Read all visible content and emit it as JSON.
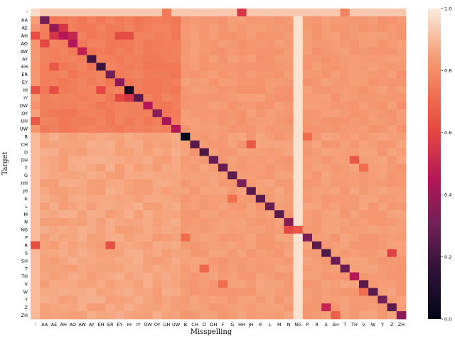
{
  "chart_data": {
    "type": "heatmap",
    "xlabel": "Misspelling",
    "ylabel": "Target",
    "x_categories": [
      "'",
      "AA",
      "AE",
      "AH",
      "AO",
      "AW",
      "AY",
      "EH",
      "ER",
      "EY",
      "IH",
      "IY",
      "OW",
      "OY",
      "UH",
      "UW",
      "B",
      "CH",
      "D",
      "DH",
      "F",
      "G",
      "HH",
      "JH",
      "K",
      "L",
      "M",
      "N",
      "NG",
      "P",
      "R",
      "S",
      "SH",
      "T",
      "TH",
      "V",
      "W",
      "Y",
      "Z",
      "ZH"
    ],
    "y_categories": [
      "'",
      "AA",
      "AE",
      "AH",
      "AO",
      "AW",
      "AY",
      "EH",
      "ER",
      "EY",
      "IH",
      "IY",
      "OW",
      "OY",
      "UH",
      "UW",
      "B",
      "CH",
      "D",
      "DH",
      "F",
      "G",
      "HH",
      "JH",
      "K",
      "L",
      "M",
      "N",
      "NG",
      "P",
      "R",
      "S",
      "SH",
      "T",
      "TH",
      "V",
      "W",
      "Y",
      "Z",
      "ZH"
    ],
    "colorbar": {
      "min": 0.0,
      "max": 1.0,
      "ticks": [
        "0.0",
        "0.2",
        "0.4",
        "0.6",
        "0.8",
        "1.0"
      ]
    },
    "values_encoding": "diagonal value per row; off-diagonal cells approximated by region baselines with notable exceptions",
    "diagonal": [
      0.97,
      0.3,
      0.38,
      0.45,
      0.45,
      0.48,
      0.2,
      0.18,
      0.3,
      0.36,
      0.05,
      0.25,
      0.45,
      0.35,
      0.42,
      0.45,
      0.0,
      0.25,
      0.22,
      0.28,
      0.28,
      0.25,
      0.32,
      0.25,
      0.25,
      0.28,
      0.25,
      0.35,
      0.65,
      0.32,
      0.25,
      0.22,
      0.28,
      0.28,
      0.45,
      0.25,
      0.25,
      0.3,
      0.25,
      0.35
    ],
    "baselines": {
      "vowel_to_vowel": 0.76,
      "vowel_to_consonant": 0.83,
      "consonant_to_vowel": 0.86,
      "consonant_to_consonant": 0.84,
      "top_row": 0.93,
      "first_column_consonants": 0.9,
      "ng_column": 0.98
    },
    "highlights": [
      {
        "row": "'",
        "col": "HH",
        "value": 0.55
      },
      {
        "row": "'",
        "col": "UH",
        "value": 0.75
      },
      {
        "row": "'",
        "col": "T",
        "value": 0.78
      },
      {
        "row": "AE",
        "col": "AH",
        "value": 0.55
      },
      {
        "row": "AH",
        "col": "'",
        "value": 0.62
      },
      {
        "row": "AH",
        "col": "AE",
        "value": 0.55
      },
      {
        "row": "AH",
        "col": "AO",
        "value": 0.5
      },
      {
        "row": "AH",
        "col": "IH",
        "value": 0.62
      },
      {
        "row": "AH",
        "col": "EY",
        "value": 0.62
      },
      {
        "row": "AO",
        "col": "AA",
        "value": 0.6
      },
      {
        "row": "EH",
        "col": "AE",
        "value": 0.65
      },
      {
        "row": "IH",
        "col": "'",
        "value": 0.62
      },
      {
        "row": "IH",
        "col": "AE",
        "value": 0.62
      },
      {
        "row": "IH",
        "col": "EH",
        "value": 0.6
      },
      {
        "row": "IY",
        "col": "EY",
        "value": 0.6
      },
      {
        "row": "IY",
        "col": "IH",
        "value": 0.55
      },
      {
        "row": "UH",
        "col": "'",
        "value": 0.65
      },
      {
        "row": "CH",
        "col": "JH",
        "value": 0.65
      },
      {
        "row": "DH",
        "col": "TH",
        "value": 0.65
      },
      {
        "row": "NG",
        "col": "N",
        "value": 0.6
      },
      {
        "row": "R",
        "col": "'",
        "value": 0.62
      },
      {
        "row": "R",
        "col": "ER",
        "value": 0.62
      },
      {
        "row": "S",
        "col": "Z",
        "value": 0.58
      },
      {
        "row": "Z",
        "col": "S",
        "value": 0.5
      },
      {
        "row": "ZH",
        "col": "SH",
        "value": 0.68
      },
      {
        "row": "T",
        "col": "D",
        "value": 0.7
      },
      {
        "row": "P",
        "col": "B",
        "value": 0.72
      },
      {
        "row": "K",
        "col": "G",
        "value": 0.72
      },
      {
        "row": "F",
        "col": "V",
        "value": 0.72
      },
      {
        "row": "V",
        "col": "F",
        "value": 0.72
      },
      {
        "row": "W",
        "col": "V",
        "value": 0.72
      },
      {
        "row": "B",
        "col": "P",
        "value": 0.72
      }
    ]
  }
}
